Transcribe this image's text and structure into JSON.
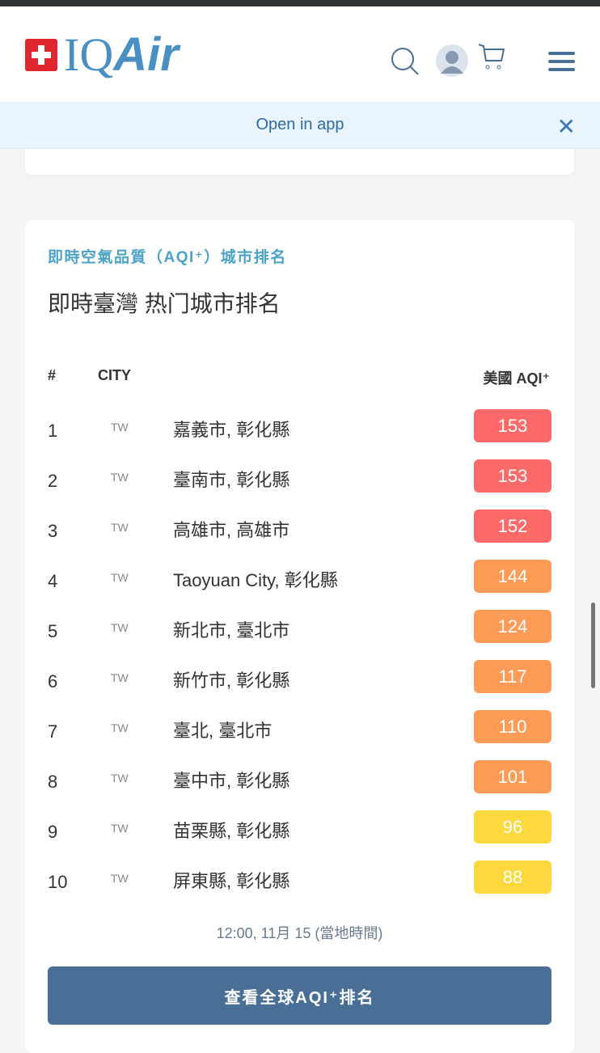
{
  "header": {
    "logo": "IQAir",
    "icons": [
      "search-icon",
      "avatar",
      "cart-icon",
      "menu-icon"
    ]
  },
  "banner": {
    "label": "Open in app",
    "close": "✕"
  },
  "ranking": {
    "subtitle": "即時空氣品質（AQI⁺）城市排名",
    "title": "即時臺灣 热门城市排名",
    "columns": {
      "rank": "#",
      "city": "CITY",
      "aqi": "美國 AQI⁺"
    },
    "rows": [
      {
        "rank": "1",
        "country": "TW",
        "city": "嘉義市, 彰化縣",
        "aqi": "153",
        "color": "#fe6a69"
      },
      {
        "rank": "2",
        "country": "TW",
        "city": "臺南市, 彰化縣",
        "aqi": "153",
        "color": "#fe6a69"
      },
      {
        "rank": "3",
        "country": "TW",
        "city": "高雄市, 高雄市",
        "aqi": "152",
        "color": "#fe6a69"
      },
      {
        "rank": "4",
        "country": "TW",
        "city": "Taoyuan City, 彰化縣",
        "aqi": "144",
        "color": "#fe9b57"
      },
      {
        "rank": "5",
        "country": "TW",
        "city": "新北市, 臺北市",
        "aqi": "124",
        "color": "#fe9b57"
      },
      {
        "rank": "6",
        "country": "TW",
        "city": "新竹市, 彰化縣",
        "aqi": "117",
        "color": "#fe9b57"
      },
      {
        "rank": "7",
        "country": "TW",
        "city": "臺北, 臺北市",
        "aqi": "110",
        "color": "#fe9b57"
      },
      {
        "rank": "8",
        "country": "TW",
        "city": "臺中市, 彰化縣",
        "aqi": "101",
        "color": "#fe9b57"
      },
      {
        "rank": "9",
        "country": "TW",
        "city": "苗栗縣, 彰化縣",
        "aqi": "96",
        "color": "#fed93e"
      },
      {
        "rank": "10",
        "country": "TW",
        "city": "屏東縣, 彰化縣",
        "aqi": "88",
        "color": "#fed93e"
      }
    ],
    "timestamp": "12:00, 11月 15 (當地時間)",
    "button": "查看全球AQI⁺排名"
  }
}
